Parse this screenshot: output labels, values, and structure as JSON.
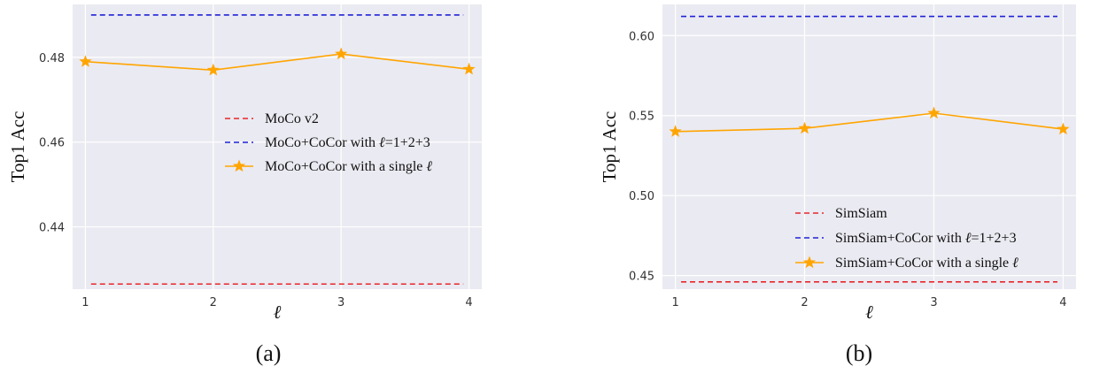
{
  "chart_data": [
    {
      "type": "line",
      "panel_label": "(a)",
      "xlabel": "ℓ",
      "ylabel": "Top1 Acc",
      "x": [
        1,
        2,
        3,
        4
      ],
      "xticks": [
        "1",
        "2",
        "3",
        "4"
      ],
      "xlim": [
        0.9,
        4.1
      ],
      "ylim": [
        0.4253,
        0.4925
      ],
      "yticks": [
        0.44,
        0.46,
        0.48
      ],
      "ytick_labels": [
        "0.44",
        "0.46",
        "0.48"
      ],
      "grid": true,
      "legend_location": "center-right",
      "series": [
        {
          "name": "MoCo v2",
          "legend_prefix": "MoCo v2",
          "legend_ell": "",
          "legend_suffix": "",
          "style": "dashed",
          "color": "#e8262a",
          "values": [
            0.4265,
            0.4265,
            0.4265,
            0.4265
          ]
        },
        {
          "name": "MoCo+CoCor with ℓ=1+2+3",
          "legend_prefix": "MoCo+CoCor with ",
          "legend_ell": "ℓ",
          "legend_suffix": "=1+2+3",
          "style": "dashed",
          "color": "#1f22d6",
          "values": [
            0.49,
            0.49,
            0.49,
            0.49
          ]
        },
        {
          "name": "MoCo+CoCor with a single ℓ",
          "legend_prefix": "MoCo+CoCor with a single ",
          "legend_ell": "ℓ",
          "legend_suffix": "",
          "style": "solid-star",
          "color": "#ffa500",
          "values": [
            0.479,
            0.477,
            0.4808,
            0.4772
          ]
        }
      ]
    },
    {
      "type": "line",
      "panel_label": "(b)",
      "xlabel": "ℓ",
      "ylabel": "Top1 Acc",
      "x": [
        1,
        2,
        3,
        4
      ],
      "xticks": [
        "1",
        "2",
        "3",
        "4"
      ],
      "xlim": [
        0.9,
        4.1
      ],
      "ylim": [
        0.4415,
        0.6195
      ],
      "yticks": [
        0.45,
        0.5,
        0.55,
        0.6
      ],
      "ytick_labels": [
        "0.45",
        "0.50",
        "0.55",
        "0.60"
      ],
      "grid": true,
      "legend_location": "lower-right",
      "series": [
        {
          "name": "SimSiam",
          "legend_prefix": "SimSiam",
          "legend_ell": "",
          "legend_suffix": "",
          "style": "dashed",
          "color": "#e8262a",
          "values": [
            0.446,
            0.446,
            0.446,
            0.446
          ]
        },
        {
          "name": "SimSiam+CoCor with ℓ=1+2+3",
          "legend_prefix": "SimSiam+CoCor with ",
          "legend_ell": "ℓ",
          "legend_suffix": "=1+2+3",
          "style": "dashed",
          "color": "#1f22d6",
          "values": [
            0.612,
            0.612,
            0.612,
            0.612
          ]
        },
        {
          "name": "SimSiam+CoCor with a single ℓ",
          "legend_prefix": "SimSiam+CoCor with a single ",
          "legend_ell": "ℓ",
          "legend_suffix": "",
          "style": "solid-star",
          "color": "#ffa500",
          "values": [
            0.54,
            0.542,
            0.5515,
            0.5415
          ]
        }
      ]
    }
  ]
}
